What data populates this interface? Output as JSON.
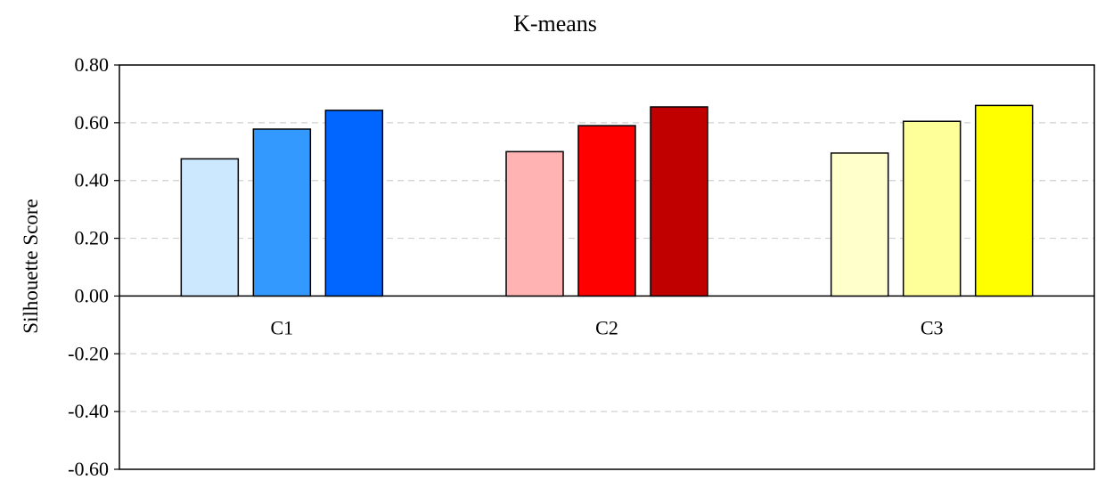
{
  "chart_data": {
    "type": "bar",
    "title": "K-means",
    "xlabel": "",
    "ylabel": "Silhouette Score",
    "ylim": [
      -0.6,
      0.8
    ],
    "yticks": [
      "0.80",
      "0.60",
      "0.40",
      "0.20",
      "0.00",
      "-0.20",
      "-0.40",
      "-0.60"
    ],
    "ytick_values": [
      0.8,
      0.6,
      0.4,
      0.2,
      0.0,
      -0.2,
      -0.4,
      -0.6
    ],
    "grid": true,
    "legend": "none",
    "categories": [
      "C1",
      "C2",
      "C3"
    ],
    "groups": [
      {
        "category": "C1",
        "values": [
          0.475,
          0.578,
          0.643
        ],
        "colors": [
          "#cce8ff",
          "#3399ff",
          "#0066ff"
        ]
      },
      {
        "category": "C2",
        "values": [
          0.5,
          0.59,
          0.655
        ],
        "colors": [
          "#ffb3b3",
          "#ff0000",
          "#c00000"
        ]
      },
      {
        "category": "C3",
        "values": [
          0.495,
          0.605,
          0.66
        ],
        "colors": [
          "#ffffcc",
          "#ffff99",
          "#ffff00"
        ]
      }
    ]
  }
}
